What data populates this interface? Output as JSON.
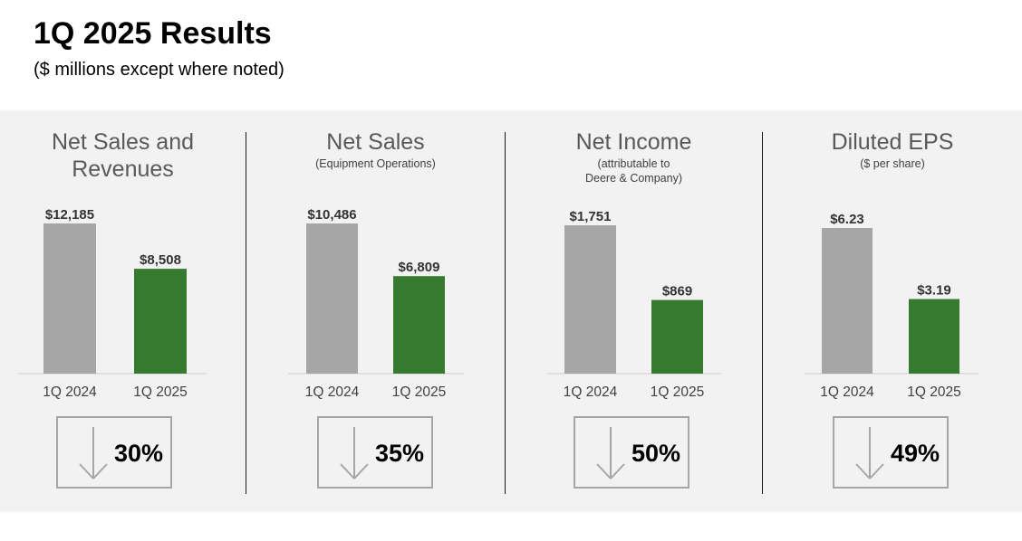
{
  "header": {
    "title": "1Q 2025 Results",
    "subtitle": "($ millions except where noted)"
  },
  "colors": {
    "prior": "#a6a6a6",
    "current": "#357a2e",
    "band": "#f2f2f2"
  },
  "panels": [
    {
      "title_lines": [
        "Net Sales and",
        "Revenues"
      ],
      "subtitle_lines": [],
      "change": "30%",
      "arrow_icon": "down-arrow-icon"
    },
    {
      "title_lines": [
        "Net Sales"
      ],
      "subtitle_lines": [
        "(Equipment Operations)"
      ],
      "change": "35%",
      "arrow_icon": "down-arrow-icon"
    },
    {
      "title_lines": [
        "Net Income"
      ],
      "subtitle_lines": [
        "(attributable to",
        "Deere & Company)"
      ],
      "change": "50%",
      "arrow_icon": "down-arrow-icon"
    },
    {
      "title_lines": [
        "Diluted EPS"
      ],
      "subtitle_lines": [
        "($ per share)"
      ],
      "change": "49%",
      "arrow_icon": "down-arrow-icon"
    }
  ],
  "chart_data": [
    {
      "type": "bar",
      "title": "Net Sales and Revenues",
      "categories": [
        "1Q 2024",
        "1Q 2025"
      ],
      "values": [
        12185,
        8508
      ],
      "labels": [
        "$12,185",
        "$8,508"
      ],
      "ylim": [
        0,
        12185
      ]
    },
    {
      "type": "bar",
      "title": "Net Sales (Equipment Operations)",
      "categories": [
        "1Q 2024",
        "1Q 2025"
      ],
      "values": [
        10486,
        6809
      ],
      "labels": [
        "$10,486",
        "$6,809"
      ],
      "ylim": [
        0,
        10486
      ]
    },
    {
      "type": "bar",
      "title": "Net Income (attributable to Deere & Company)",
      "categories": [
        "1Q 2024",
        "1Q 2025"
      ],
      "values": [
        1751,
        869
      ],
      "labels": [
        "$1,751",
        "$869"
      ],
      "ylim": [
        0,
        1751
      ]
    },
    {
      "type": "bar",
      "title": "Diluted EPS ($ per share)",
      "categories": [
        "1Q 2024",
        "1Q 2025"
      ],
      "values": [
        6.23,
        3.19
      ],
      "labels": [
        "$6.23",
        "$3.19"
      ],
      "ylim": [
        0,
        6.23
      ]
    }
  ]
}
